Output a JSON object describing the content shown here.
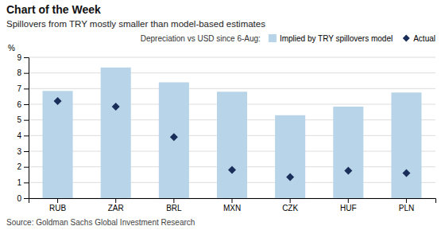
{
  "chart_data": {
    "type": "bar",
    "title": "Chart of the Week",
    "subtitle": "Spillovers from TRY mostly smaller than model-based estimates",
    "source": "Source: Goldman Sachs Global Investment Research",
    "ylabel": "%",
    "legend_title": "Depreciation vs USD since 6-Aug:",
    "categories": [
      "RUB",
      "ZAR",
      "BRL",
      "MXN",
      "CZK",
      "HUF",
      "PLN"
    ],
    "series": [
      {
        "name": "Implied by TRY spillovers model",
        "type": "bar",
        "color": "#b8d4e8",
        "values": [
          6.85,
          8.35,
          7.4,
          6.8,
          5.3,
          5.85,
          6.75
        ]
      },
      {
        "name": "Actual",
        "type": "scatter",
        "marker": "diamond",
        "color": "#1a2e5a",
        "values": [
          6.2,
          5.85,
          3.9,
          1.8,
          1.35,
          1.75,
          1.6
        ]
      }
    ],
    "ylim": [
      0,
      9
    ],
    "yticks": [
      0,
      1,
      2,
      3,
      4,
      5,
      6,
      7,
      8,
      9
    ],
    "grid": true,
    "legend": "upper right"
  }
}
